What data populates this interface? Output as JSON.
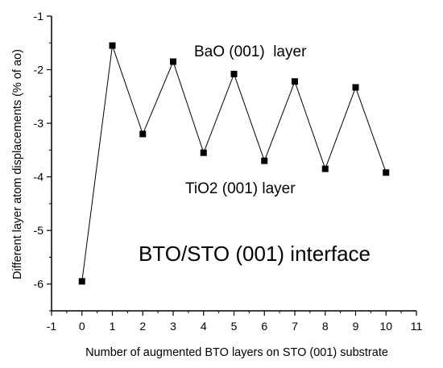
{
  "chart_data": {
    "type": "line",
    "title": "",
    "xlabel": "Number of augmented BTO layers on STO (001) substrate",
    "ylabel": "Different layer atom displacements (% of ao)",
    "xlim": [
      -1,
      11
    ],
    "ylim": [
      -6.5,
      -1
    ],
    "xticks": [
      "-1",
      "0",
      "1",
      "2",
      "3",
      "4",
      "5",
      "6",
      "7",
      "8",
      "9",
      "10",
      "11"
    ],
    "yticks": [
      "-6",
      "-5",
      "-4",
      "-3",
      "-2",
      "-1"
    ],
    "grid": false,
    "marker": "square",
    "line_color": "#000000",
    "series": [
      {
        "x": [
          0,
          1,
          2,
          3,
          4,
          5,
          6,
          7,
          8,
          9,
          10
        ],
        "y": [
          -5.95,
          -1.55,
          -3.2,
          -1.85,
          -3.55,
          -2.08,
          -3.7,
          -2.22,
          -3.85,
          -2.33,
          -3.92
        ]
      }
    ],
    "annotations": [
      "BaO (001)  layer",
      "TiO2 (001) layer",
      "BTO/STO (001) interface"
    ]
  }
}
